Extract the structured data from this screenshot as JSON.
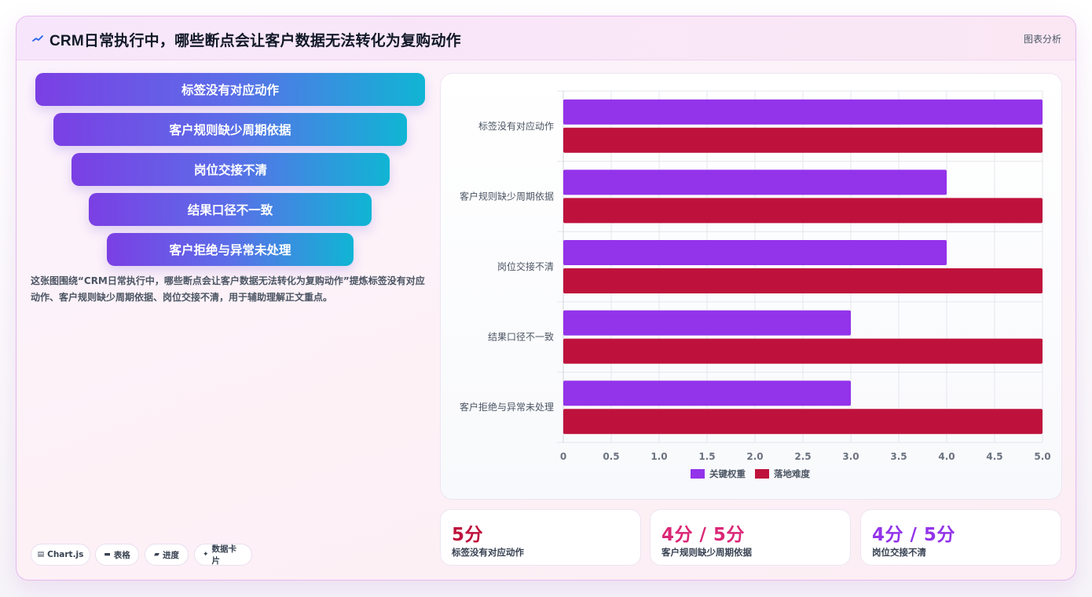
{
  "header": {
    "icon": "chart-line-icon",
    "title": "CRM日常执行中，哪些断点会让客户数据无法转化为复购动作",
    "tag": "图表分析"
  },
  "funnel": [
    "标签没有对应动作",
    "客户规则缺少周期依据",
    "岗位交接不清",
    "结果口径不一致",
    "客户拒绝与异常未处理"
  ],
  "description": "这张图围绕“CRM日常执行中，哪些断点会让客户数据无法转化为复购动作”提炼标签没有对应动作、客户规则缺少周期依据、岗位交接不清，用于辅助理解正文重点。",
  "chips": [
    {
      "icon": "chart-icon",
      "label": "Chart.js"
    },
    {
      "icon": "table-icon",
      "label": "表格"
    },
    {
      "icon": "progress-icon",
      "label": "进度"
    },
    {
      "icon": "sparkle-icon",
      "label": "数据卡片"
    }
  ],
  "chart_data": {
    "type": "bar",
    "orientation": "horizontal",
    "categories": [
      "标签没有对应动作",
      "客户规则缺少周期依据",
      "岗位交接不清",
      "结果口径不一致",
      "客户拒绝与异常未处理"
    ],
    "series": [
      {
        "name": "关键权重",
        "values": [
          5,
          4,
          4,
          3,
          3
        ],
        "color": "#9333ea"
      },
      {
        "name": "落地难度",
        "values": [
          5,
          5,
          5,
          5,
          5
        ],
        "color": "#be123c"
      }
    ],
    "xlim": [
      0,
      5
    ],
    "ticks": [
      "0",
      "0.5",
      "1.0",
      "1.5",
      "2.0",
      "2.5",
      "3.0",
      "3.5",
      "4.0",
      "4.5",
      "5.0"
    ],
    "grid": true,
    "legend": "bottom"
  },
  "stats": [
    {
      "value": "5分",
      "label": "标签没有对应动作",
      "color": "#be123c"
    },
    {
      "value": "4分 / 5分",
      "label": "客户规则缺少周期依据",
      "color": "#db2777"
    },
    {
      "value": "4分 / 5分",
      "label": "岗位交接不清",
      "color": "#9333ea"
    }
  ]
}
